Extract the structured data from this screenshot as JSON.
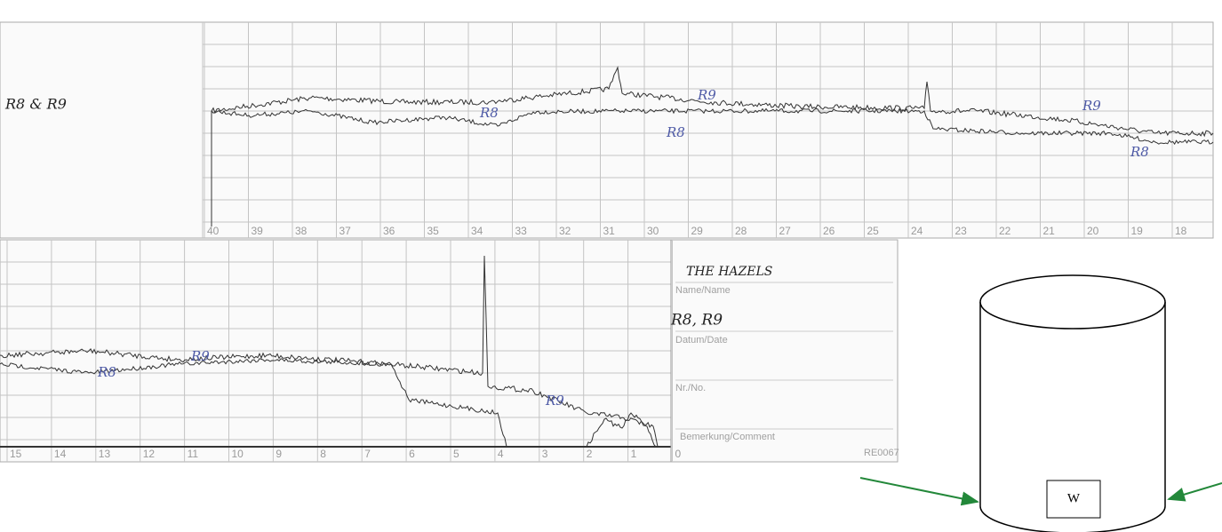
{
  "top_strip": {
    "note": "R8 & R9",
    "trace_labels": [
      "R8",
      "R9",
      "R8",
      "R9",
      "R8"
    ],
    "scale": [
      40,
      39,
      38,
      37,
      36,
      35,
      34,
      33,
      32,
      31,
      30,
      29,
      28,
      27,
      26,
      25,
      24,
      23,
      22,
      21,
      20,
      19,
      18
    ]
  },
  "bottom_strip": {
    "trace_labels": [
      "R8",
      "R9",
      "R9"
    ],
    "scale": [
      15,
      14,
      13,
      12,
      11,
      10,
      9,
      8,
      7,
      6,
      5,
      4,
      3,
      2,
      1,
      0
    ]
  },
  "form": {
    "site": "THE HAZELS",
    "name_label": "Name/Name",
    "name": "R8, R9",
    "date_label": "Datum/Date",
    "number_label": "Nr./No.",
    "comment_label": "Bemerkung/Comment",
    "code": "RE0067"
  },
  "diagram": {
    "box_label": "W"
  }
}
